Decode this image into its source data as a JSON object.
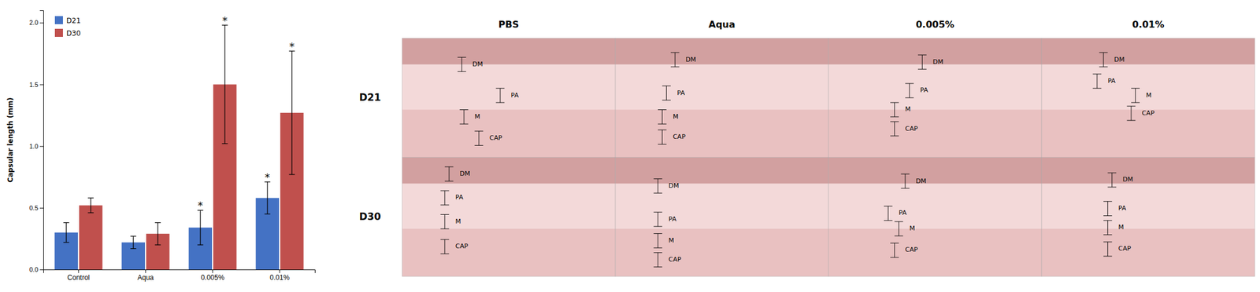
{
  "chart_data": [
    {
      "type": "bar",
      "categories": [
        "Control",
        "Aqua",
        "0.005%",
        "0.01%"
      ],
      "series": [
        {
          "name": "D21",
          "color": "#4472C4",
          "values": [
            0.3,
            0.22,
            0.34,
            0.58
          ],
          "errors": [
            0.08,
            0.05,
            0.14,
            0.13
          ]
        },
        {
          "name": "D30",
          "color": "#C0504D",
          "values": [
            0.52,
            0.29,
            1.5,
            1.27
          ],
          "errors": [
            0.06,
            0.09,
            0.48,
            0.5
          ]
        }
      ],
      "ylabel": "Capsular length (mm)",
      "ylim": [
        0,
        2.1
      ],
      "yticks": [
        {
          "value": 0,
          "label": "0.0"
        },
        0.5,
        {
          "value": 1.0,
          "label": "1.0"
        },
        1.5,
        {
          "value": 2.0,
          "label": "2.0"
        }
      ],
      "legend": "upper left",
      "annotations": [
        {
          "text": "*",
          "series": "D21",
          "category": "0.005%"
        },
        {
          "text": "*",
          "series": "D30",
          "category": "0.005%"
        },
        {
          "text": "*",
          "series": "D21",
          "category": "0.01%"
        },
        {
          "text": "*",
          "series": "D30",
          "category": "0.01%"
        }
      ]
    },
    {
      "type": "image",
      "col_labels": [
        "PBS",
        "Aqua",
        "0.005%",
        "0.01%"
      ],
      "row_labels": [
        "D21",
        "D30"
      ],
      "annotations": [
        [
          "DM",
          "PA",
          "M",
          "CAP"
        ],
        [
          "DM",
          "PA",
          "M",
          "CAP"
        ],
        [
          "DM",
          "PA",
          "M",
          "CAP"
        ],
        [
          "DM",
          "PA",
          "M",
          "CAP"
        ],
        [
          "DM",
          "PA",
          "M",
          "CAP"
        ],
        [
          "DM",
          "PA",
          "M",
          "CAP"
        ],
        [
          "DM",
          "PA",
          "M",
          "CAP"
        ],
        [
          "DM",
          "PA",
          "M",
          "CAP"
        ]
      ]
    }
  ]
}
